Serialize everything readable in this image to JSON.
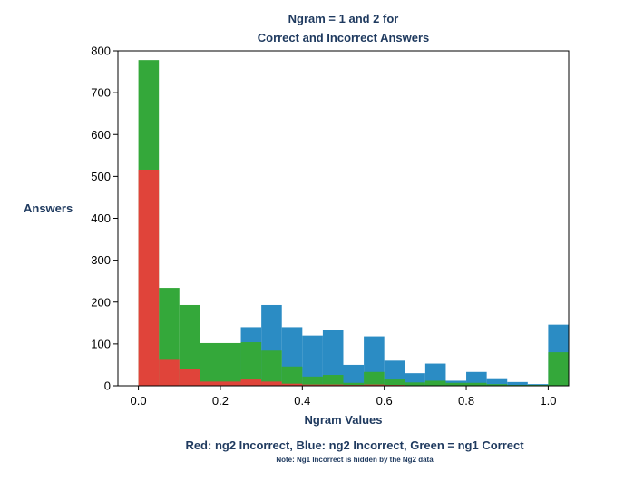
{
  "title": {
    "line1": "Ngram = 1 and 2 for",
    "line2": "Correct and Incorrect Answers"
  },
  "ylabel": "Answers",
  "xlabel": "Ngram Values",
  "legend": {
    "main": "Red: ng2 Incorrect, Blue: ng2 Incorrect,  Green = ng1 Correct",
    "note": "Note: Ng1 Incorrect is hidden by the Ng2 data"
  },
  "chart_data": {
    "type": "bar",
    "bins": [
      0.0,
      0.05,
      0.1,
      0.15,
      0.2,
      0.25,
      0.3,
      0.35,
      0.4,
      0.45,
      0.5,
      0.55,
      0.6,
      0.65,
      0.7,
      0.75,
      0.8,
      0.85,
      0.9,
      0.95,
      1.0
    ],
    "series": [
      {
        "key": "blue",
        "color": "#2b8cc4",
        "values": [
          0,
          0,
          0,
          0,
          0,
          140,
          193,
          140,
          120,
          133,
          50,
          118,
          60,
          30,
          53,
          12,
          33,
          18,
          9,
          4,
          146
        ]
      },
      {
        "key": "green",
        "color": "#34a83a",
        "values": [
          778,
          234,
          193,
          102,
          102,
          104,
          84,
          46,
          22,
          26,
          7,
          33,
          15,
          8,
          12,
          7,
          7,
          4,
          2,
          2,
          80
        ]
      },
      {
        "key": "red",
        "color": "#e0443a",
        "values": [
          516,
          62,
          40,
          10,
          10,
          15,
          10,
          5,
          3,
          3,
          2,
          3,
          2,
          1,
          1,
          1,
          1,
          1,
          1,
          1,
          0
        ]
      }
    ],
    "xticks": [
      "0.0",
      "0.2",
      "0.4",
      "0.6",
      "0.8",
      "1.0"
    ],
    "yticks": [
      "0",
      "100",
      "200",
      "300",
      "400",
      "500",
      "600",
      "700",
      "800"
    ],
    "xlim": [
      -0.05,
      1.05
    ],
    "ylim": [
      0,
      800
    ],
    "grid": false
  }
}
